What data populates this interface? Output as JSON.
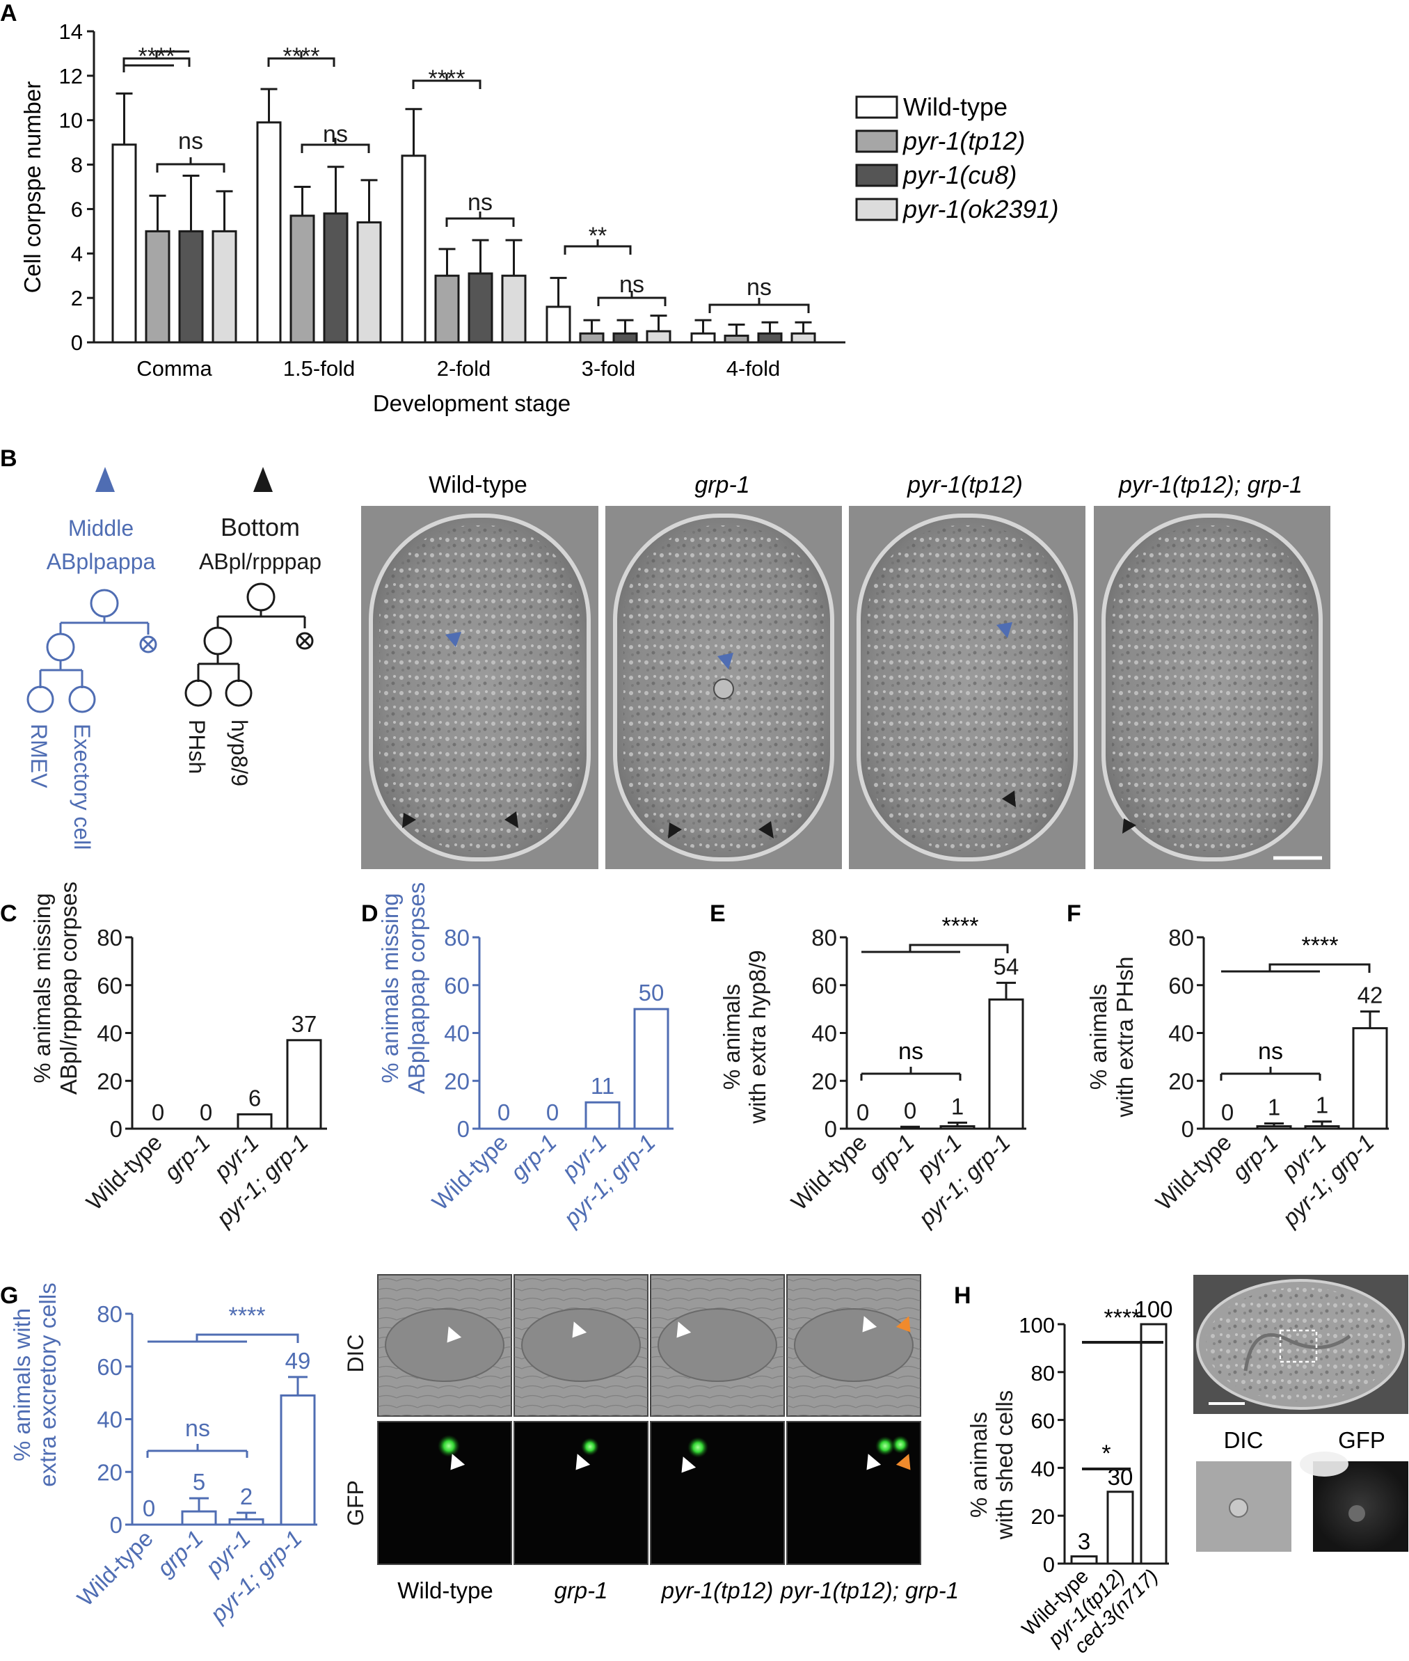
{
  "colors": {
    "black": "#1a1a1a",
    "blue": "#4f6db3",
    "orange": "#f08a2c",
    "green": "#33d633",
    "wildtype_fill": "#ffffff",
    "tp12_fill": "#a6a6a6",
    "cu8_fill": "#555555",
    "ok2391_fill": "#dcdcdc"
  },
  "panels": {
    "A": {
      "letter": "A",
      "legend": [
        "Wild-type",
        "pyr-1(tp12)",
        "pyr-1(cu8)",
        "pyr-1(ok2391)"
      ],
      "sig": {
        "comma_top": "****",
        "comma_ns": "ns",
        "fold15_top": "****",
        "fold15_ns": "ns",
        "fold2_top": "****",
        "fold2_ns": "ns",
        "fold3_top": "**",
        "fold3_ns": "ns",
        "fold4_ns": "ns"
      }
    },
    "B": {
      "letter": "B",
      "middle_label": "Middle",
      "middle_cell": "ABplpappa",
      "middle_daughters": [
        "RMEV",
        "Exectory cell"
      ],
      "bottom_label": "Bottom",
      "bottom_cell": "ABpl/rpppap",
      "bottom_daughters": [
        "PHsh",
        "hyp8/9"
      ],
      "image_titles": [
        "Wild-type",
        "grp-1",
        "pyr-1(tp12)",
        "pyr-1(tp12); grp-1"
      ]
    },
    "C": {
      "letter": "C",
      "value_labels": [
        "0",
        "0",
        "6",
        "37"
      ]
    },
    "D": {
      "letter": "D",
      "value_labels": [
        "0",
        "0",
        "11",
        "50"
      ]
    },
    "E": {
      "letter": "E",
      "value_labels": [
        "0",
        "0",
        "1",
        "54"
      ],
      "sig_top": "****",
      "sig_ns": "ns"
    },
    "F": {
      "letter": "F",
      "value_labels": [
        "0",
        "1",
        "1",
        "42"
      ],
      "sig_top": "****",
      "sig_ns": "ns"
    },
    "G": {
      "letter": "G",
      "value_labels": [
        "0",
        "5",
        "2",
        "49"
      ],
      "sig_top": "****",
      "sig_ns": "ns",
      "row_labels": [
        "DIC",
        "GFP"
      ],
      "image_captions": [
        "Wild-type",
        "grp-1",
        "pyr-1(tp12)",
        "pyr-1(tp12); grp-1"
      ]
    },
    "H": {
      "letter": "H",
      "value_labels": [
        "3",
        "30",
        "100"
      ],
      "sig_top": "****",
      "sig_small": "*",
      "inset_labels": [
        "DIC",
        "GFP"
      ]
    }
  },
  "chart_data": [
    {
      "type": "bar",
      "panel": "A",
      "xlabel": "Development stage",
      "ylabel": "Cell corpspe number",
      "ylim": [
        0,
        14
      ],
      "yticks": [
        "0",
        "2",
        "4",
        "6",
        "8",
        "10",
        "12",
        "14"
      ],
      "categories": [
        "Comma",
        "1.5-fold",
        "2-fold",
        "3-fold",
        "4-fold"
      ],
      "legend_position": "right",
      "series": [
        {
          "name": "Wild-type",
          "values": [
            8.9,
            9.9,
            8.4,
            1.6,
            0.4
          ],
          "errors": [
            2.3,
            1.5,
            2.1,
            1.3,
            0.6
          ]
        },
        {
          "name": "pyr-1(tp12)",
          "values": [
            5.0,
            5.7,
            3.0,
            0.4,
            0.3
          ],
          "errors": [
            1.6,
            1.3,
            1.2,
            0.6,
            0.5
          ]
        },
        {
          "name": "pyr-1(cu8)",
          "values": [
            5.0,
            5.8,
            3.1,
            0.4,
            0.4
          ],
          "errors": [
            2.5,
            2.1,
            1.5,
            0.6,
            0.5
          ]
        },
        {
          "name": "pyr-1(ok2391)",
          "values": [
            5.0,
            5.4,
            3.0,
            0.5,
            0.4
          ],
          "errors": [
            1.8,
            1.9,
            1.6,
            0.7,
            0.5
          ]
        }
      ]
    },
    {
      "type": "bar",
      "panel": "C",
      "ylabel": "% animals missing ABpl/rpppap corpses",
      "ylim": [
        0,
        80
      ],
      "yticks": [
        "0",
        "20",
        "40",
        "60",
        "80"
      ],
      "categories": [
        "Wild-type",
        "grp-1",
        "pyr-1",
        "pyr-1; grp-1"
      ],
      "values": [
        0,
        0,
        6,
        37
      ]
    },
    {
      "type": "bar",
      "panel": "D",
      "ylabel": "% animals missing ABplpappap corpses",
      "ylim": [
        0,
        80
      ],
      "yticks": [
        "0",
        "20",
        "40",
        "60",
        "80"
      ],
      "categories": [
        "Wild-type",
        "grp-1",
        "pyr-1",
        "pyr-1; grp-1"
      ],
      "values": [
        0,
        0,
        11,
        50
      ]
    },
    {
      "type": "bar",
      "panel": "E",
      "ylabel": "% animals with extra hyp8/9",
      "ylim": [
        0,
        80
      ],
      "yticks": [
        "0",
        "20",
        "40",
        "60",
        "80"
      ],
      "categories": [
        "Wild-type",
        "grp-1",
        "pyr-1",
        "pyr-1; grp-1"
      ],
      "values": [
        0,
        0,
        1,
        54
      ],
      "errors": [
        0,
        0.8,
        1.5,
        7
      ]
    },
    {
      "type": "bar",
      "panel": "F",
      "ylabel": "% animals with extra PHsh",
      "ylim": [
        0,
        80
      ],
      "yticks": [
        "0",
        "20",
        "40",
        "60",
        "80"
      ],
      "categories": [
        "Wild-type",
        "grp-1",
        "pyr-1",
        "pyr-1; grp-1"
      ],
      "values": [
        0,
        1,
        1,
        42
      ],
      "errors": [
        0,
        1.2,
        2,
        7
      ]
    },
    {
      "type": "bar",
      "panel": "G",
      "ylabel": "% animals with extra excretory cells",
      "ylim": [
        0,
        80
      ],
      "yticks": [
        "0",
        "20",
        "40",
        "60",
        "80"
      ],
      "categories": [
        "Wild-type",
        "grp-1",
        "pyr-1",
        "pyr-1; grp-1"
      ],
      "values": [
        0,
        5,
        2,
        49
      ],
      "errors": [
        0,
        5,
        2.5,
        7
      ]
    },
    {
      "type": "bar",
      "panel": "H",
      "ylabel": "% animals with shed cells",
      "ylim": [
        0,
        100
      ],
      "yticks": [
        "0",
        "20",
        "40",
        "60",
        "80",
        "100"
      ],
      "categories": [
        "Wild-type",
        "pyr-1(tp12)",
        "ced-3(n717)"
      ],
      "values": [
        3,
        30,
        100
      ]
    }
  ]
}
